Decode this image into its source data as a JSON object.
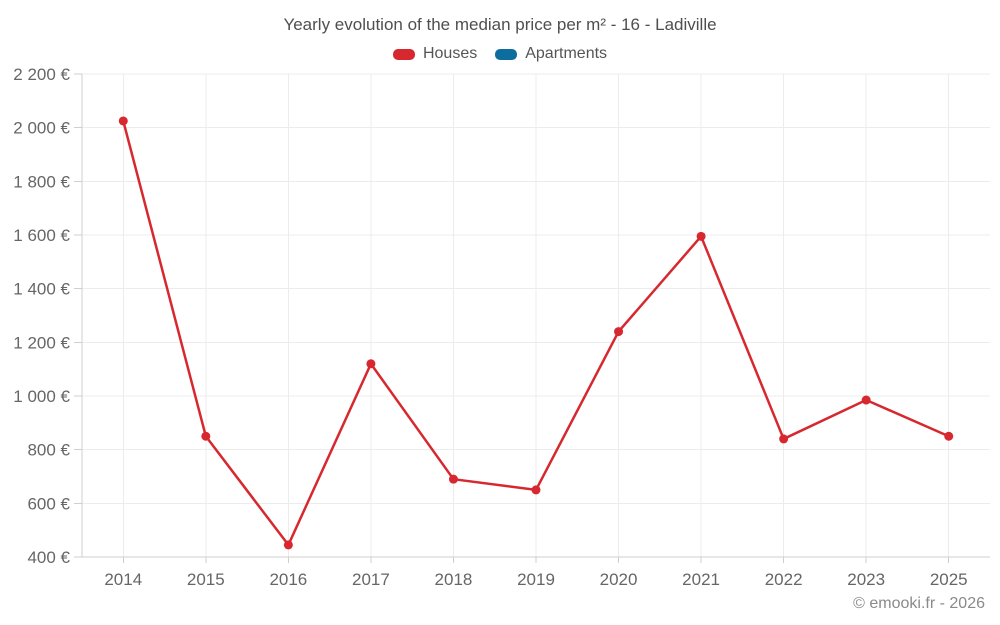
{
  "footer": {
    "copyright": "© emooki.fr - 2026"
  },
  "chart_data": {
    "type": "line",
    "title": "Yearly evolution of the median price per m² - 16 - Ladiville",
    "categories": [
      "2014",
      "2015",
      "2016",
      "2017",
      "2018",
      "2019",
      "2020",
      "2021",
      "2022",
      "2023",
      "2025"
    ],
    "series": [
      {
        "name": "Houses",
        "color": "#d7282f",
        "values": [
          2025,
          850,
          445,
          1120,
          690,
          650,
          1240,
          1595,
          840,
          985,
          850
        ]
      },
      {
        "name": "Apartments",
        "color": "#0d6e9e",
        "values": []
      }
    ],
    "xlabel": "",
    "ylabel": "",
    "ylim": [
      400,
      2200
    ],
    "y_tick_step": 200,
    "y_ticks": [
      {
        "value": 2200,
        "label": "2 200 €"
      },
      {
        "value": 2000,
        "label": "2 000 €"
      },
      {
        "value": 1800,
        "label": "1 800 €"
      },
      {
        "value": 1600,
        "label": "1 600 €"
      },
      {
        "value": 1400,
        "label": "1 400 €"
      },
      {
        "value": 1200,
        "label": "1 200 €"
      },
      {
        "value": 1000,
        "label": "1 000 €"
      },
      {
        "value": 800,
        "label": "800 €"
      },
      {
        "value": 600,
        "label": "600 €"
      },
      {
        "value": 400,
        "label": "400 €"
      }
    ],
    "grid": true,
    "legend_position": "top",
    "marker": "circle"
  }
}
